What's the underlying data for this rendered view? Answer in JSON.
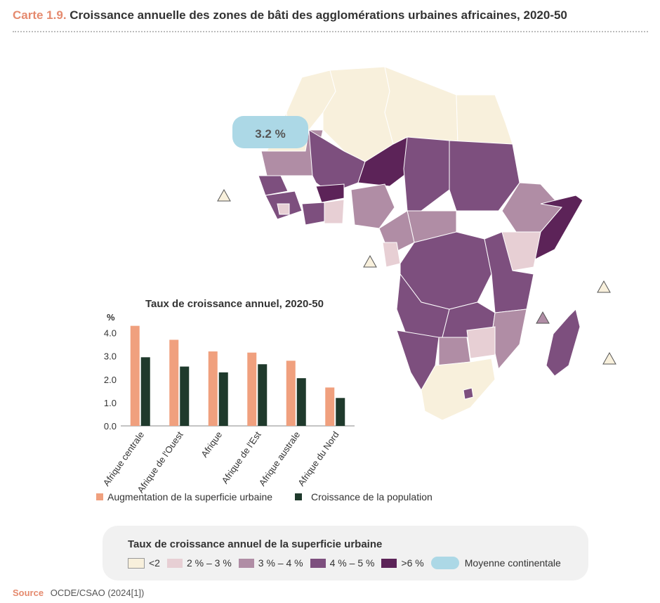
{
  "header": {
    "number": "Carte 1.9.",
    "title": "Croissance annuelle des zones de bâti des agglomérations urbaines africaines, 2020-50"
  },
  "map": {
    "continental_average": "3.2 %",
    "colors": {
      "lt2": "#f8f0dc",
      "r2_3": "#e7cfd4",
      "r3_4": "#b08da5",
      "r4_5": "#7d4f7e",
      "gt6": "#5c2358",
      "average": "#acd8e6"
    }
  },
  "chart_data": {
    "type": "bar",
    "title": "Taux de croissance annuel, 2020-50",
    "ylabel": "%",
    "ylim": [
      0,
      4.5
    ],
    "yticks": [
      "0.0",
      "1.0",
      "2.0",
      "3.0",
      "4.0"
    ],
    "categories": [
      "Afrique centrale",
      "Afrique de l'Ouest",
      "Afrique",
      "Afrique de l'Est",
      "Afrique australe",
      "Afrique du Nord"
    ],
    "series": [
      {
        "name": "Augmentation de la superficie urbaine",
        "color": "#f0a07e",
        "values": [
          4.3,
          3.7,
          3.2,
          3.15,
          2.8,
          1.65
        ]
      },
      {
        "name": "Croissance de la population",
        "color": "#1f3a2c",
        "values": [
          2.95,
          2.55,
          2.3,
          2.65,
          2.05,
          1.2
        ]
      }
    ],
    "legend": "bottom"
  },
  "legend": {
    "title": "Taux de croissance annuel de la superficie urbaine",
    "items": [
      {
        "label": "<2",
        "color": "#f8f0dc"
      },
      {
        "label": "2 % – 3 %",
        "color": "#e7cfd4"
      },
      {
        "label": "3 % – 4 %",
        "color": "#b08da5"
      },
      {
        "label": "4 % – 5 %",
        "color": "#7d4f7e"
      },
      {
        "label": ">6 %",
        "color": "#5c2358"
      }
    ],
    "average_label": "Moyenne continentale"
  },
  "source": {
    "label": "Source",
    "text": "OCDE/CSAO (2024[1])"
  }
}
